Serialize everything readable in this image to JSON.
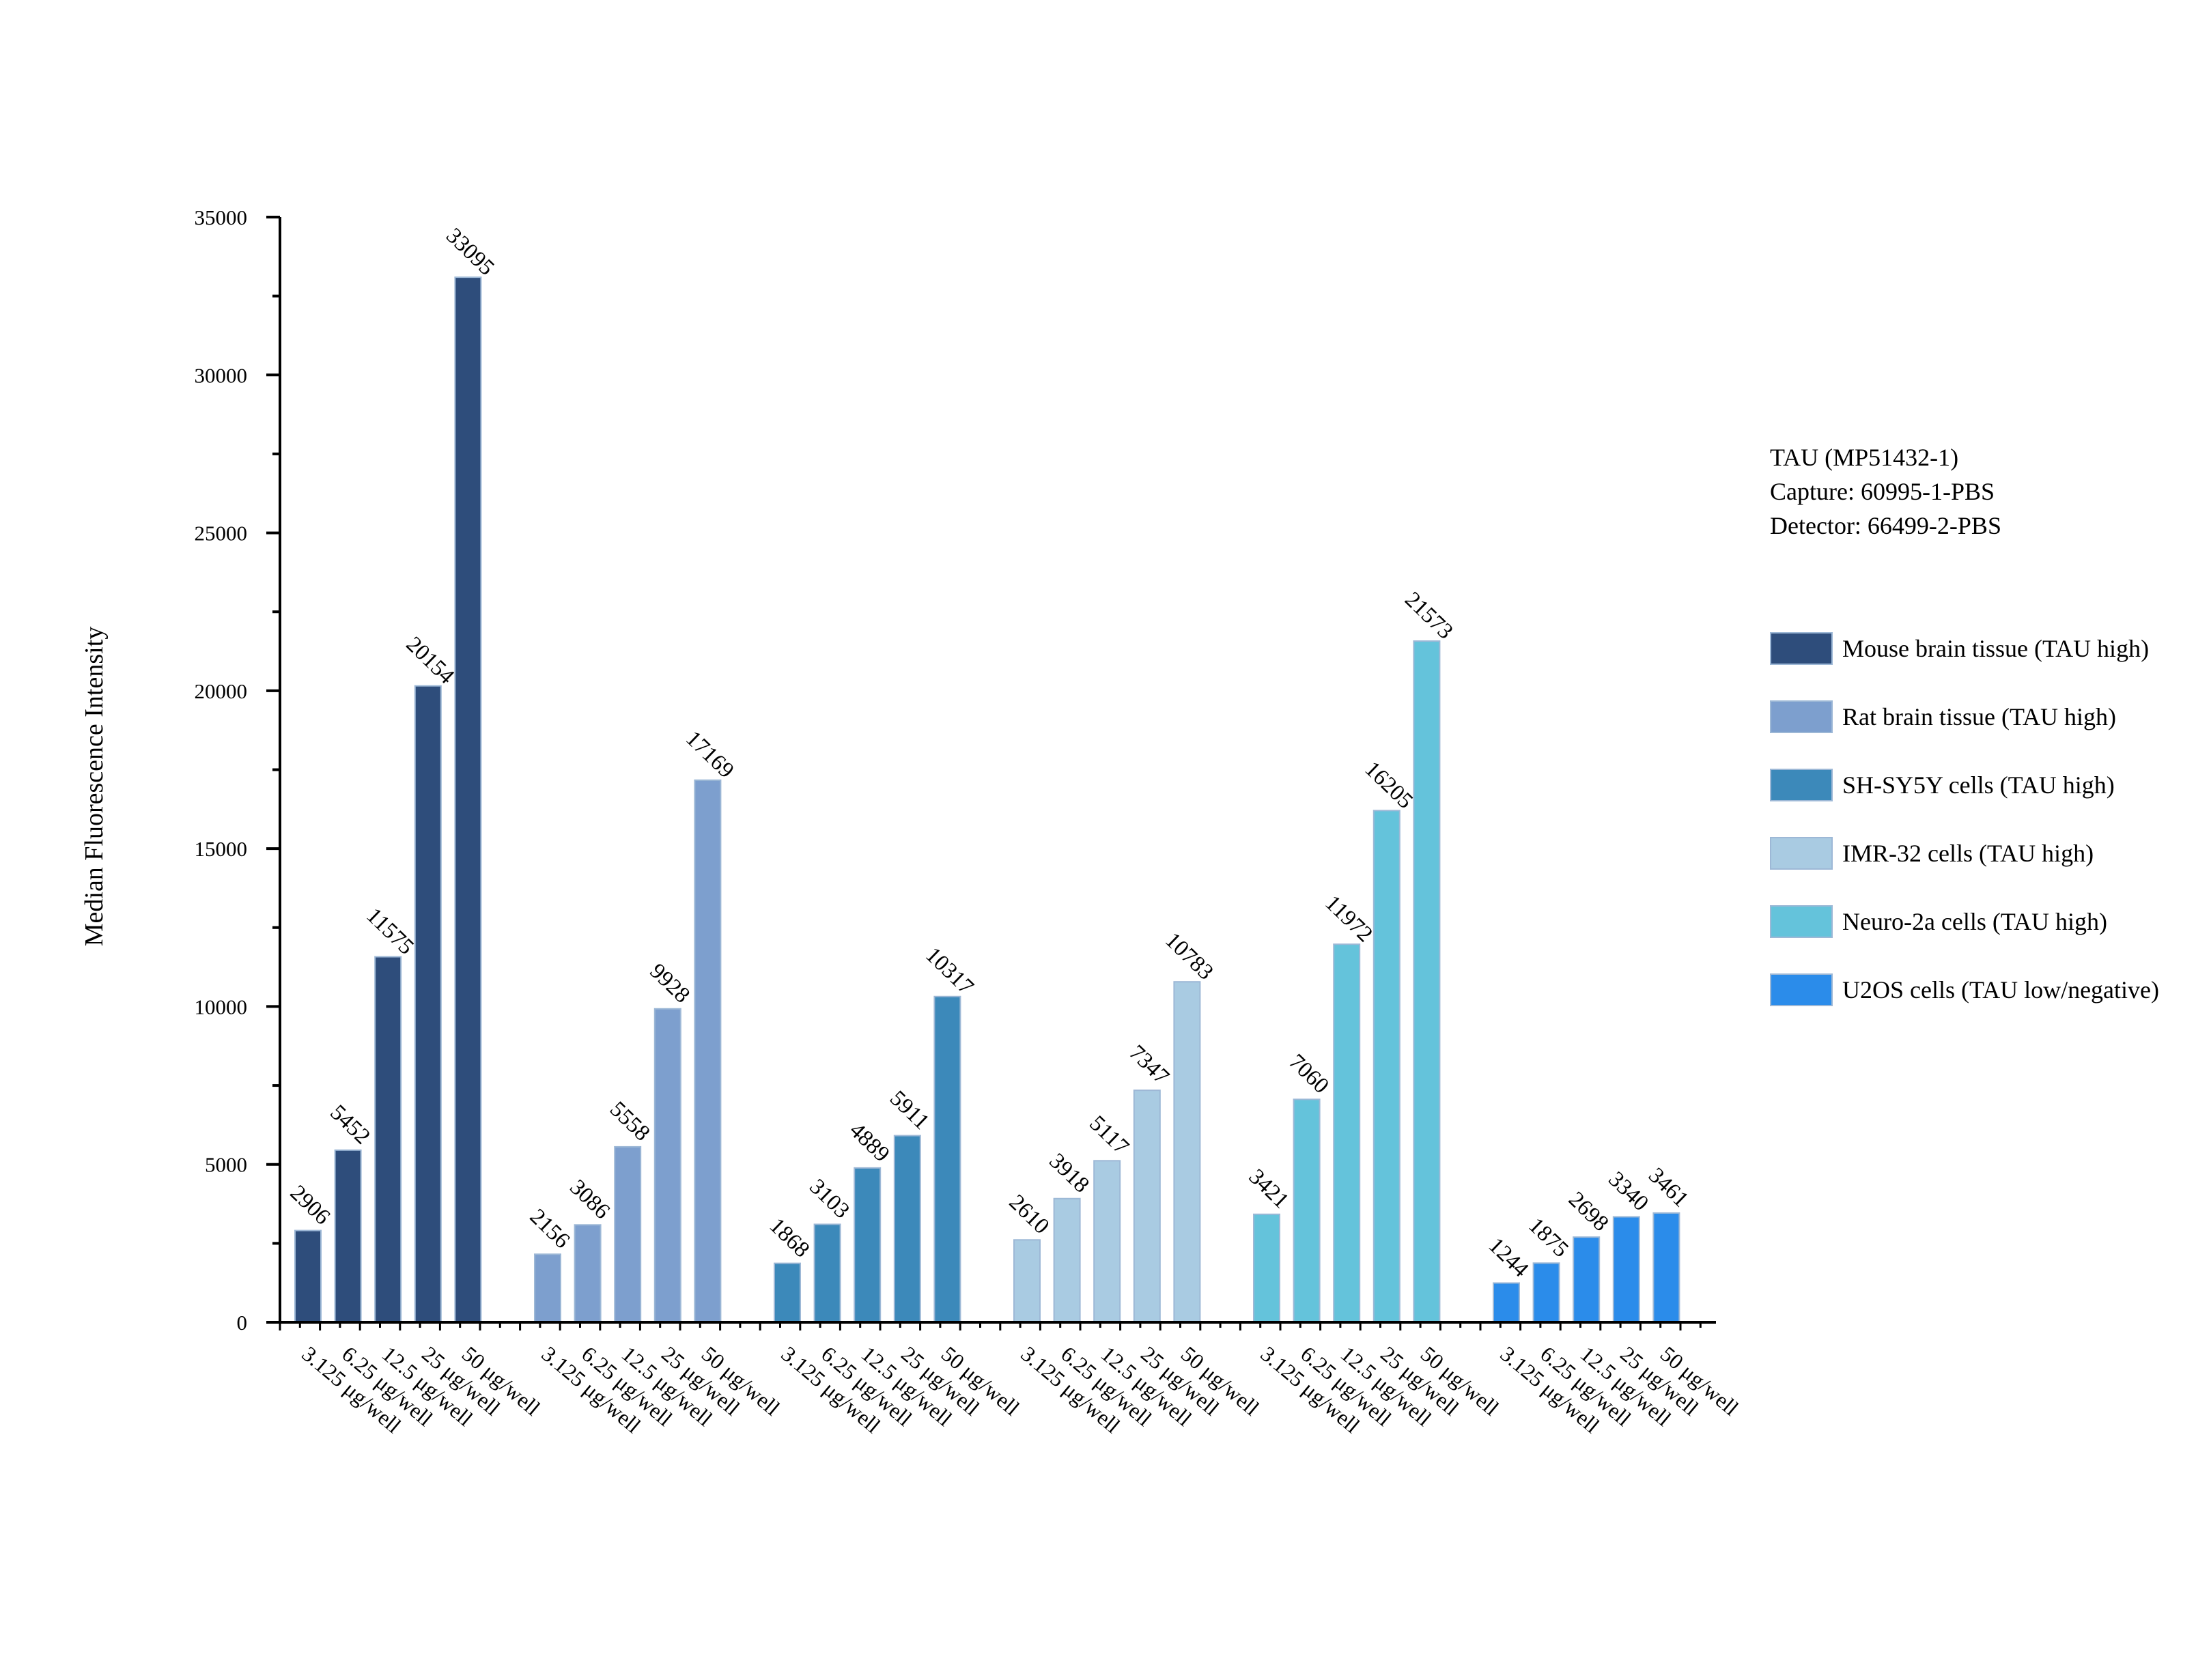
{
  "chart_data": {
    "type": "bar",
    "title": "",
    "xlabel": "",
    "ylabel": "Median Fluorescence Intensity",
    "ylim": [
      0,
      35000
    ],
    "yticks": [
      0,
      5000,
      10000,
      15000,
      20000,
      25000,
      30000,
      35000
    ],
    "categories": [
      "3.125 μg/well",
      "6.25 μg/well",
      "12.5 μg/well",
      "25 μg/well",
      "50 μg/well"
    ],
    "series": [
      {
        "name": "Mouse brain tissue (TAU high)",
        "color": "#2E4D7B",
        "values": [
          2906,
          5452,
          11575,
          20154,
          33095
        ]
      },
      {
        "name": "Rat brain tissue (TAU high)",
        "color": "#7D9FCE",
        "values": [
          2156,
          3086,
          5558,
          9928,
          17169
        ]
      },
      {
        "name": "SH-SY5Y cells (TAU high)",
        "color": "#3C89BA",
        "values": [
          1868,
          3103,
          4889,
          5911,
          10317
        ]
      },
      {
        "name": "IMR-32 cells (TAU high)",
        "color": "#A9CBE2",
        "values": [
          2610,
          3918,
          5117,
          7347,
          10783
        ]
      },
      {
        "name": "Neuro-2a cells (TAU high)",
        "color": "#64C3DB",
        "values": [
          3421,
          7060,
          11972,
          16205,
          21573
        ]
      },
      {
        "name": "U2OS cells (TAU low/negative)",
        "color": "#2B8CEA",
        "values": [
          1244,
          1875,
          2698,
          3340,
          3461
        ]
      }
    ],
    "annotations": [
      "TAU (MP51432-1)",
      "Capture: 60995-1-PBS",
      "Detector: 66499-2-PBS"
    ],
    "grid": false,
    "legend": "right"
  }
}
